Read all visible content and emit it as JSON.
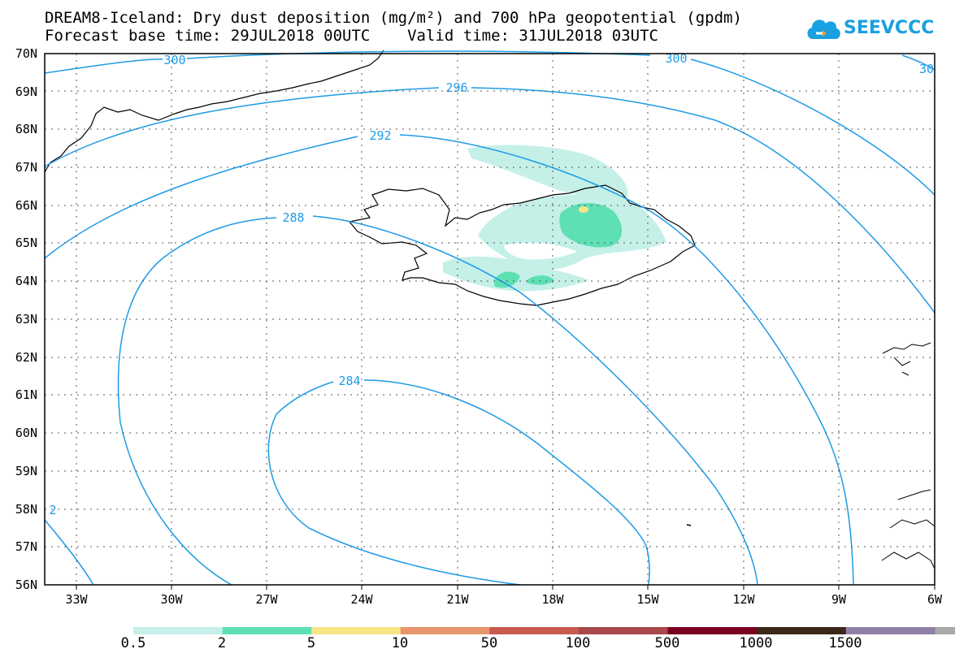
{
  "title": {
    "line1": "DREAM8-Iceland: Dry dust deposition (mg/m²) and 700 hPa geopotential (gpdm)",
    "line2": "Forecast base time: 29JUL2018 00UTC    Valid time: 31JUL2018 03UTC"
  },
  "logo": {
    "text": "SEEVCCC",
    "icon": "cloud-icon",
    "color": "#1aa0e0"
  },
  "map": {
    "lat_labels": [
      "70N",
      "69N",
      "68N",
      "67N",
      "66N",
      "65N",
      "64N",
      "63N",
      "62N",
      "61N",
      "60N",
      "59N",
      "58N",
      "57N",
      "56N"
    ],
    "lon_labels": [
      "33W",
      "30W",
      "27W",
      "24W",
      "21W",
      "18W",
      "15W",
      "12W",
      "9W",
      "6W"
    ],
    "contour_labels": [
      "300",
      "296",
      "292",
      "288",
      "284",
      "300",
      "30",
      "2"
    ],
    "contour_color": "#1e9be6"
  },
  "colorbar": {
    "labels": [
      "0.5",
      "2",
      "5",
      "10",
      "50",
      "100",
      "500",
      "1000",
      "1500"
    ],
    "colors": [
      "#c4f0e8",
      "#5fe0b4",
      "#f6e684",
      "#e8946c",
      "#c85a50",
      "#a8484a",
      "#7a0020",
      "#3a2818",
      "#9080a8",
      "#a8a8a8"
    ]
  }
}
